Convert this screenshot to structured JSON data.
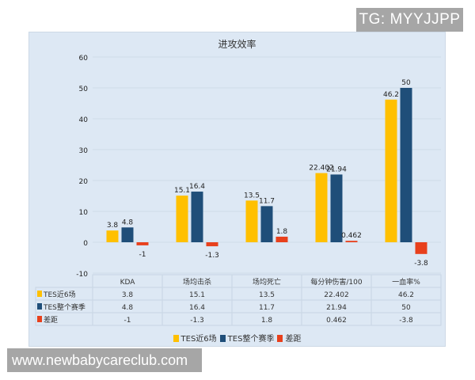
{
  "watermarks": {
    "top": "TG: MYYJJPP",
    "bottom": "www.newbabycareclub.com"
  },
  "colors": {
    "recent6": "#ffc000",
    "season": "#1f4e79",
    "diff": "#e8401c",
    "panel_bg": "#dde8f4",
    "grid": "#cfdce9"
  },
  "chart_data": {
    "type": "bar",
    "title": "进攻效率",
    "categories": [
      "KDA",
      "场均击杀",
      "场均死亡",
      "每分钟伤害/100",
      "一血率%"
    ],
    "series": [
      {
        "name": "TES近6场",
        "color": "#ffc000",
        "values": [
          3.8,
          15.1,
          13.5,
          22.402,
          46.2
        ],
        "labels": [
          "3.8",
          "15.1",
          "13.5",
          "22.402",
          "46.2"
        ]
      },
      {
        "name": "TES整个赛季",
        "color": "#1f4e79",
        "values": [
          4.8,
          16.4,
          11.7,
          21.94,
          50
        ],
        "labels": [
          "4.8",
          "16.4",
          "11.7",
          "21.94",
          "50"
        ]
      },
      {
        "name": "差距",
        "color": "#e8401c",
        "values": [
          -1,
          -1.3,
          1.8,
          0.462,
          -3.8
        ],
        "labels": [
          "-1",
          "-1.3",
          "1.8",
          "0.462",
          "-3.8"
        ]
      }
    ],
    "ylim": [
      -10,
      60
    ],
    "yticks": [
      "60",
      "50",
      "40",
      "30",
      "20",
      "10",
      "0",
      "-10"
    ],
    "xlabel": "",
    "ylabel": "",
    "grid": true,
    "data_table": true,
    "legend_position": "bottom"
  }
}
